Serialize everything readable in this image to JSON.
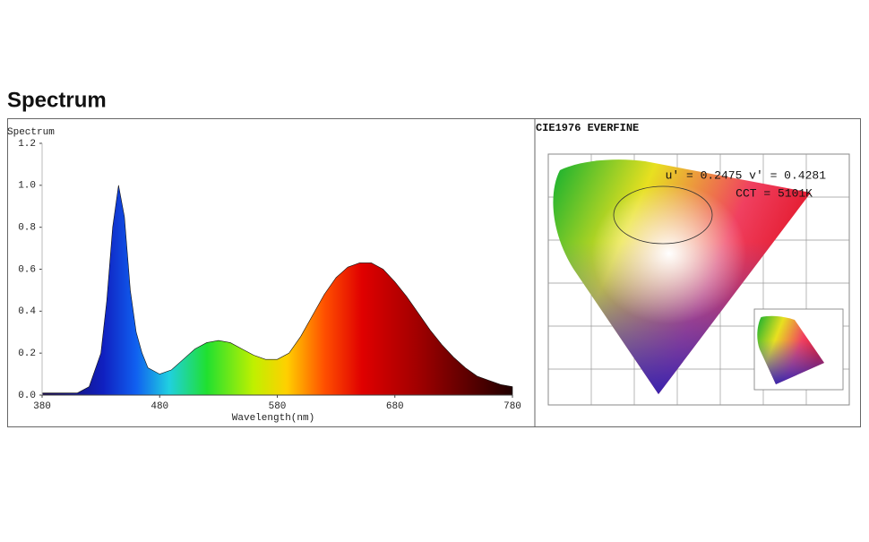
{
  "heading": "Spectrum",
  "chart_data": {
    "type": "area",
    "y_label": "Spectrum",
    "x_label": "Wavelength(nm)",
    "x": [
      380,
      400,
      410,
      420,
      430,
      435,
      440,
      445,
      450,
      455,
      460,
      465,
      470,
      480,
      490,
      500,
      510,
      520,
      530,
      540,
      550,
      560,
      570,
      580,
      590,
      600,
      610,
      620,
      630,
      640,
      650,
      660,
      670,
      680,
      690,
      700,
      710,
      720,
      730,
      740,
      750,
      760,
      770,
      780
    ],
    "values": [
      0.01,
      0.01,
      0.01,
      0.04,
      0.2,
      0.45,
      0.8,
      1.0,
      0.85,
      0.5,
      0.3,
      0.2,
      0.13,
      0.1,
      0.12,
      0.17,
      0.22,
      0.25,
      0.26,
      0.25,
      0.22,
      0.19,
      0.17,
      0.17,
      0.2,
      0.28,
      0.38,
      0.48,
      0.56,
      0.61,
      0.63,
      0.63,
      0.6,
      0.54,
      0.47,
      0.39,
      0.31,
      0.24,
      0.18,
      0.13,
      0.09,
      0.07,
      0.05,
      0.04
    ],
    "xlim": [
      380,
      780
    ],
    "xticks": [
      380,
      480,
      580,
      680,
      780
    ],
    "ylim": [
      0,
      1.2
    ],
    "yticks": [
      {
        "value": 0,
        "label": "0.0"
      },
      0.2,
      0.4,
      0.6,
      0.8,
      {
        "value": 1,
        "label": "1.0"
      },
      1.2
    ]
  },
  "cie": {
    "title": "CIE1976 EVERFINE",
    "coordinates": "u' = 0.2475 v' = 0.4281",
    "cct": "CCT = 5101K"
  }
}
